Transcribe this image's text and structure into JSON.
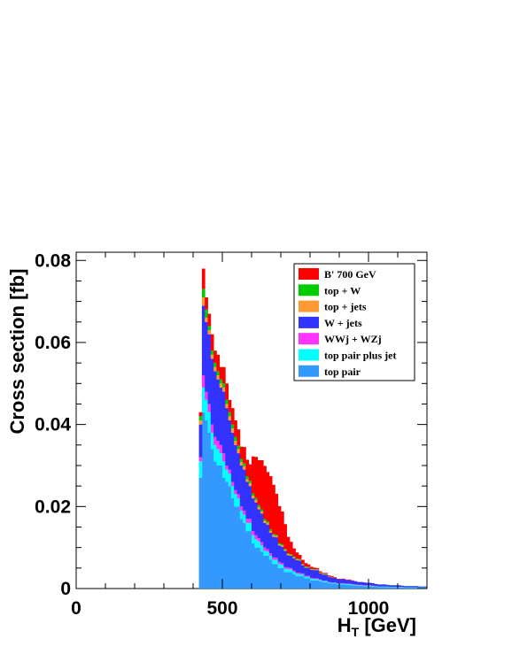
{
  "chart_data": {
    "type": "bar",
    "stacked": true,
    "histogram": true,
    "xlabel_main": "H",
    "xlabel_sub": "T",
    "xlabel_unit": " [GeV]",
    "ylabel": "Cross section [fb]",
    "xlim": [
      0,
      1200
    ],
    "ylim": [
      0,
      0.082
    ],
    "x_ticks": [
      0,
      500,
      1000
    ],
    "y_ticks": [
      0,
      0.02,
      0.04,
      0.06,
      0.08
    ],
    "x_tick_labels": [
      "0",
      "500",
      "1000"
    ],
    "y_tick_labels": [
      "0",
      "0.02",
      "0.04",
      "0.06",
      "0.08"
    ],
    "legend_position": "top-right",
    "bin_width": 10,
    "bin_starts": [
      420,
      430,
      440,
      450,
      460,
      470,
      480,
      490,
      500,
      510,
      520,
      530,
      540,
      550,
      560,
      570,
      580,
      590,
      600,
      610,
      620,
      630,
      640,
      650,
      660,
      670,
      680,
      690,
      700,
      710,
      720,
      730,
      740,
      750,
      760,
      770,
      780,
      790,
      800,
      810,
      820,
      830,
      840,
      850,
      860,
      870,
      880,
      890,
      900,
      910,
      920,
      930,
      940,
      950,
      960,
      970,
      980,
      990,
      1000,
      1010,
      1020,
      1030,
      1040,
      1050,
      1060,
      1070,
      1080,
      1090,
      1100,
      1110,
      1120,
      1130,
      1140,
      1150,
      1160,
      1170,
      1180,
      1190
    ],
    "series": [
      {
        "name": "top pair",
        "color": "#3399ff",
        "values": [
          0.027,
          0.043,
          0.041,
          0.038,
          0.034,
          0.031,
          0.03,
          0.03,
          0.027,
          0.026,
          0.025,
          0.022,
          0.02,
          0.02,
          0.017,
          0.016,
          0.014,
          0.014,
          0.011,
          0.01,
          0.01,
          0.009,
          0.008,
          0.008,
          0.007,
          0.006,
          0.006,
          0.005,
          0.005,
          0.004,
          0.004,
          0.004,
          0.0035,
          0.003,
          0.003,
          0.003,
          0.0025,
          0.0025,
          0.002,
          0.002,
          0.002,
          0.0018,
          0.0015,
          0.0015,
          0.0013,
          0.0012,
          0.0012,
          0.001,
          0.001,
          0.001,
          0.0009,
          0.0009,
          0.0008,
          0.0008,
          0.0007,
          0.0007,
          0.0006,
          0.0006,
          0.0006,
          0.0005,
          0.0005,
          0.0004,
          0.0004,
          0.0004,
          0.0004,
          0.0003,
          0.0003,
          0.0003,
          0.0003,
          0.0003,
          0.0002,
          0.0002,
          0.0002,
          0.0002,
          0.0002,
          0.0002,
          0.0002,
          0.0002
        ]
      },
      {
        "name": "top pair plus jet",
        "color": "#00ffff",
        "values": [
          0.004,
          0.006,
          0.005,
          0.005,
          0.004,
          0.004,
          0.004,
          0.003,
          0.004,
          0.003,
          0.003,
          0.003,
          0.003,
          0.002,
          0.002,
          0.002,
          0.002,
          0.002,
          0.002,
          0.002,
          0.0015,
          0.0015,
          0.0012,
          0.001,
          0.001,
          0.001,
          0.001,
          0.001,
          0.0008,
          0.0008,
          0.0007,
          0.0007,
          0.0006,
          0.0006,
          0.0005,
          0.0005,
          0.0004,
          0.0004,
          0.0004,
          0.0003,
          0.0003,
          0.0003,
          0.0003,
          0.0003,
          0.0002,
          0.0002,
          0.0002,
          0.0002,
          0.0002,
          0.0002,
          0.0002,
          0.0002,
          0.0002,
          0.0001,
          0.0001,
          0.0001,
          0.0001,
          0.0001,
          0.0001,
          0.0001,
          0.0001,
          0.0001,
          0.0001,
          0.0001,
          0.0001,
          0.0001,
          0.0001,
          0.0001,
          0.0001,
          0.0001,
          0.0001,
          0.0001,
          0.0001,
          0.0001,
          0.0001,
          0.0001,
          0.0001,
          0.0001
        ]
      },
      {
        "name": "WWj + WZj",
        "color": "#ff33ff",
        "values": [
          0.001,
          0.003,
          0.002,
          0.002,
          0.002,
          0.002,
          0.002,
          0.002,
          0.002,
          0.001,
          0.001,
          0.001,
          0.001,
          0.001,
          0.001,
          0.001,
          0.001,
          0.001,
          0.001,
          0.001,
          0.0008,
          0.0008,
          0.0008,
          0.0006,
          0.0006,
          0.0006,
          0.0005,
          0.0005,
          0.0004,
          0.0004,
          0.0004,
          0.0003,
          0.0003,
          0.0003,
          0.0003,
          0.0002,
          0.0002,
          0.0002,
          0.0002,
          0.0002,
          0.0002,
          0.0001,
          0.0001,
          0.0001,
          0.0001,
          0.0001,
          0.0001,
          0.0001,
          0.0001,
          0.0001,
          0.0001,
          0.0001,
          0.0001,
          0.0001,
          0.0001,
          0.0001,
          0.0001,
          0.0001,
          0.0001,
          0.0001,
          0,
          0,
          0,
          0,
          0,
          0,
          0,
          0,
          0,
          0,
          0,
          0,
          0,
          0,
          0,
          0,
          0,
          0
        ]
      },
      {
        "name": "W + jets",
        "color": "#3333ff",
        "values": [
          0.008,
          0.017,
          0.017,
          0.017,
          0.016,
          0.016,
          0.015,
          0.014,
          0.015,
          0.014,
          0.012,
          0.012,
          0.011,
          0.01,
          0.01,
          0.01,
          0.009,
          0.008,
          0.008,
          0.008,
          0.007,
          0.007,
          0.006,
          0.006,
          0.005,
          0.005,
          0.005,
          0.004,
          0.004,
          0.004,
          0.003,
          0.003,
          0.003,
          0.003,
          0.003,
          0.002,
          0.002,
          0.002,
          0.002,
          0.002,
          0.002,
          0.0015,
          0.0015,
          0.0015,
          0.0013,
          0.0012,
          0.0011,
          0.001,
          0.001,
          0.001,
          0.0009,
          0.0009,
          0.0008,
          0.0008,
          0.0007,
          0.0007,
          0.0007,
          0.0006,
          0.0006,
          0.0006,
          0.0005,
          0.0005,
          0.0005,
          0.0005,
          0.0004,
          0.0004,
          0.0004,
          0.0004,
          0.0004,
          0.0003,
          0.0003,
          0.0003,
          0.0003,
          0.0003,
          0.0003,
          0.0002,
          0.0002,
          0.0002
        ]
      },
      {
        "name": "top + jets",
        "color": "#ff9933",
        "values": [
          0.001,
          0.002,
          0.001,
          0.001,
          0.001,
          0.001,
          0.001,
          0.001,
          0.001,
          0.001,
          0.001,
          0.001,
          0.001,
          0.001,
          0.0008,
          0.0008,
          0.0007,
          0.0007,
          0.0006,
          0.0006,
          0.0005,
          0.0005,
          0.0005,
          0.0004,
          0.0004,
          0.0004,
          0.0003,
          0.0003,
          0.0003,
          0.0003,
          0.0003,
          0.0002,
          0.0002,
          0.0002,
          0.0002,
          0.0002,
          0.0002,
          0.0001,
          0.0001,
          0.0001,
          0.0001,
          0.0001,
          0.0001,
          0.0001,
          0.0001,
          0.0001,
          0.0001,
          0,
          0,
          0,
          0,
          0,
          0,
          0,
          0,
          0,
          0,
          0,
          0,
          0,
          0,
          0,
          0,
          0,
          0,
          0,
          0,
          0,
          0,
          0,
          0,
          0,
          0,
          0,
          0,
          0,
          0,
          0
        ]
      },
      {
        "name": "top + W",
        "color": "#00cc00",
        "values": [
          0.001,
          0.002,
          0.002,
          0.001,
          0.001,
          0.001,
          0.001,
          0.001,
          0.001,
          0.001,
          0.001,
          0.001,
          0.001,
          0.0008,
          0.0008,
          0.0007,
          0.0007,
          0.0006,
          0.0006,
          0.0005,
          0.0005,
          0.0005,
          0.0004,
          0.0004,
          0.0004,
          0.0003,
          0.0003,
          0.0003,
          0.0003,
          0.0002,
          0.0002,
          0.0002,
          0.0002,
          0.0002,
          0.0002,
          0.0001,
          0.0001,
          0.0001,
          0.0001,
          0.0001,
          0.0001,
          0.0001,
          0.0001,
          0.0001,
          0,
          0,
          0,
          0,
          0,
          0,
          0,
          0,
          0,
          0,
          0,
          0,
          0,
          0,
          0,
          0,
          0,
          0,
          0,
          0,
          0,
          0,
          0,
          0,
          0,
          0,
          0,
          0,
          0,
          0,
          0,
          0,
          0,
          0
        ]
      },
      {
        "name": "B' 700 GeV",
        "color": "#ff0000",
        "values": [
          0.001,
          0.005,
          0.003,
          0.003,
          0.004,
          0.003,
          0.004,
          0.003,
          0.004,
          0.004,
          0.003,
          0.004,
          0.004,
          0.004,
          0.003,
          0.004,
          0.004,
          0.004,
          0.009,
          0.01,
          0.011,
          0.012,
          0.013,
          0.012,
          0.013,
          0.012,
          0.01,
          0.009,
          0.008,
          0.006,
          0.004,
          0.003,
          0.002,
          0.0015,
          0.001,
          0.001,
          0.0008,
          0.0006,
          0.0005,
          0.0004,
          0.0003,
          0.0003,
          0.0002,
          0.0002,
          0.0002,
          0.0002,
          0.0001,
          0.0001,
          0.0001,
          0.0001,
          0.0001,
          0.0001,
          0.0001,
          0,
          0,
          0,
          0,
          0,
          0,
          0,
          0,
          0,
          0,
          0,
          0,
          0,
          0,
          0,
          0,
          0,
          0,
          0,
          0,
          0,
          0,
          0,
          0,
          0
        ]
      }
    ]
  }
}
